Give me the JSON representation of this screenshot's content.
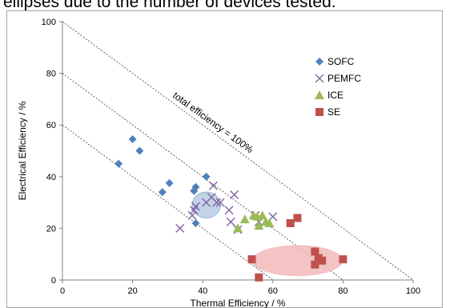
{
  "page": {
    "caption": "ellipses due to the number of devices tested."
  },
  "chart_data": {
    "type": "scatter",
    "xlabel": "Thermal Efficiency / %",
    "ylabel": "Electrical Efficiency / %",
    "xlim": [
      0,
      100
    ],
    "ylim": [
      0,
      100
    ],
    "xticks": [
      "0",
      "20",
      "40",
      "60",
      "80",
      "100"
    ],
    "yticks": [
      "0",
      "20",
      "40",
      "60",
      "80",
      "100"
    ],
    "grid": false,
    "legend_position": "top-right",
    "annotation": "total efficiency = 100%",
    "reference_lines": [
      {
        "x1": 0,
        "y1": 100,
        "x2": 100,
        "y2": 0
      },
      {
        "x1": 0,
        "y1": 80,
        "x2": 80,
        "y2": 0
      },
      {
        "x1": 0,
        "y1": 60,
        "x2": 60,
        "y2": 0
      }
    ],
    "regions": [
      {
        "series": "PEMFC",
        "cx": 41,
        "cy": 29,
        "rx": 4,
        "ry": 5,
        "color": "#b8cce4"
      },
      {
        "series": "SE",
        "cx": 67,
        "cy": 7.5,
        "rx": 13,
        "ry": 6,
        "color": "#f2b8b8"
      }
    ],
    "series": [
      {
        "name": "SOFC",
        "marker": "diamond",
        "color": "#4f81bd",
        "points": [
          [
            16,
            45
          ],
          [
            20,
            54.5
          ],
          [
            22,
            50
          ],
          [
            28.5,
            34
          ],
          [
            30.5,
            37.5
          ],
          [
            37.5,
            34.5
          ],
          [
            38,
            36
          ],
          [
            41,
            40
          ],
          [
            38,
            22
          ]
        ]
      },
      {
        "name": "PEMFC",
        "marker": "x",
        "color": "#8064a2",
        "points": [
          [
            33.5,
            20
          ],
          [
            37,
            25
          ],
          [
            37.5,
            27
          ],
          [
            38,
            28.5
          ],
          [
            41,
            30
          ],
          [
            42.5,
            32
          ],
          [
            43,
            36.5
          ],
          [
            44,
            30
          ],
          [
            45,
            30
          ],
          [
            47.5,
            27
          ],
          [
            48,
            22.5
          ],
          [
            49,
            33
          ],
          [
            50,
            19.5
          ],
          [
            55,
            25
          ],
          [
            56,
            22.5
          ],
          [
            60,
            24.5
          ]
        ]
      },
      {
        "name": "ICE",
        "marker": "triangle",
        "color": "#9bbb59",
        "points": [
          [
            50,
            20
          ],
          [
            52,
            23.5
          ],
          [
            54.5,
            25
          ],
          [
            55.5,
            24.5
          ],
          [
            56,
            21
          ],
          [
            57,
            25
          ],
          [
            58,
            22.5
          ],
          [
            59,
            22
          ]
        ]
      },
      {
        "name": "SE",
        "marker": "square",
        "color": "#c0504d",
        "points": [
          [
            54,
            8
          ],
          [
            56,
            1
          ],
          [
            65,
            22
          ],
          [
            67,
            24
          ],
          [
            72,
            11
          ],
          [
            72,
            6
          ],
          [
            73,
            8.5
          ],
          [
            74,
            7.5
          ],
          [
            80,
            8
          ]
        ]
      }
    ]
  }
}
